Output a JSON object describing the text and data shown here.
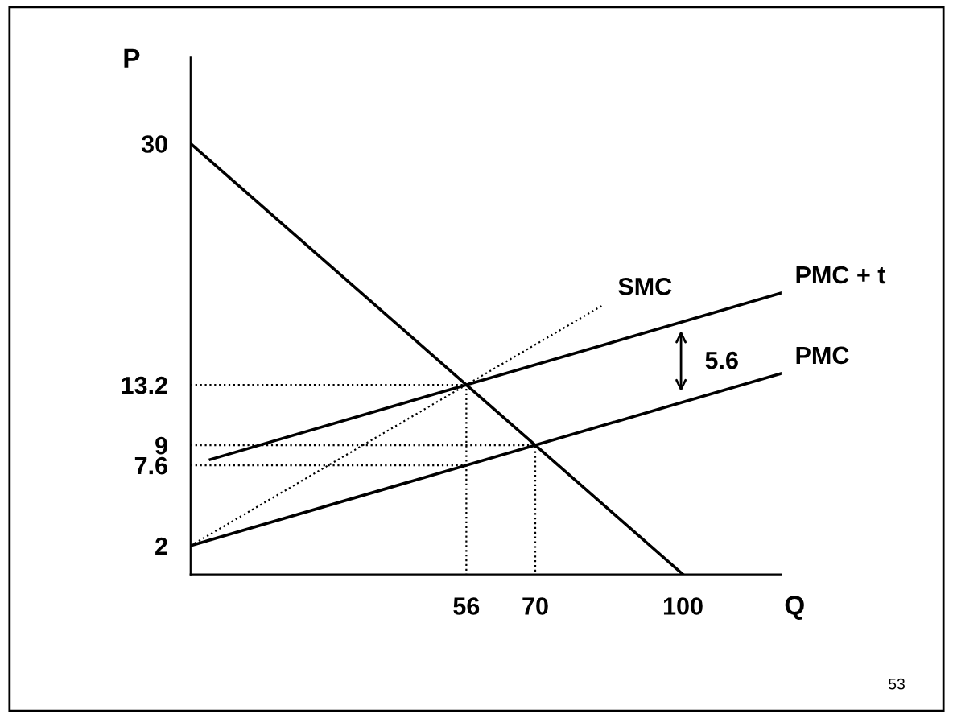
{
  "chart_data": {
    "type": "line",
    "xlabel": "Q",
    "ylabel": "P",
    "xlim": [
      0,
      120
    ],
    "ylim": [
      0,
      36
    ],
    "xticks": [
      56,
      70,
      100
    ],
    "yticks": [
      2,
      7.6,
      9,
      13.2,
      30
    ],
    "grid": false,
    "legend": false,
    "marker": "none",
    "series": [
      {
        "x": [
          0,
          100
        ],
        "values": [
          30,
          0
        ],
        "color": "#000000",
        "line_style": "solid"
      },
      {
        "name": "SMC",
        "x": [
          0,
          84
        ],
        "values": [
          2,
          18.8
        ],
        "color": "#000000",
        "line_style": "dotted"
      },
      {
        "name": "PMC + t",
        "x": [
          4,
          120
        ],
        "values": [
          8,
          19.6
        ],
        "color": "#000000",
        "line_style": "solid"
      },
      {
        "name": "PMC",
        "x": [
          0,
          120
        ],
        "values": [
          2,
          14
        ],
        "color": "#000000",
        "line_style": "solid"
      },
      {
        "x": [
          0,
          56,
          56
        ],
        "values": [
          13.2,
          13.2,
          0
        ],
        "color": "#000000",
        "line_style": "dotted"
      },
      {
        "x": [
          0,
          70,
          70
        ],
        "values": [
          9,
          9,
          0
        ],
        "color": "#000000",
        "line_style": "dotted"
      },
      {
        "x": [
          0,
          56
        ],
        "values": [
          7.6,
          7.6
        ],
        "color": "#000000",
        "line_style": "dotted"
      }
    ],
    "annotations": [
      "5.6",
      "53"
    ]
  }
}
